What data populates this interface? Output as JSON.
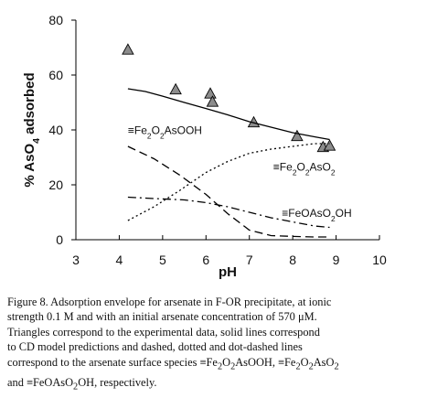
{
  "chart_data": {
    "type": "scatter",
    "xlabel": "pH",
    "ylabel_parts": {
      "pre": "% AsO",
      "sub": "4",
      "post": " adsorbed"
    },
    "xlim": [
      3,
      10
    ],
    "ylim": [
      0,
      80
    ],
    "x_ticks": [
      3,
      4,
      5,
      6,
      7,
      8,
      9,
      10
    ],
    "y_ticks": [
      0,
      20,
      40,
      60,
      80
    ],
    "grid": false,
    "series": [
      {
        "kind": "points",
        "marker": "triangle",
        "color": "#8c8c8c",
        "points": [
          [
            4.2,
            69
          ],
          [
            5.3,
            54.5
          ],
          [
            6.1,
            53
          ],
          [
            6.15,
            50
          ],
          [
            7.1,
            42.5
          ],
          [
            8.1,
            37.5
          ],
          [
            8.7,
            33.5
          ],
          [
            8.85,
            34
          ]
        ]
      },
      {
        "kind": "line",
        "style": "solid",
        "color": "#000000",
        "points": [
          [
            4.2,
            55
          ],
          [
            4.6,
            54
          ],
          [
            5.0,
            52.3
          ],
          [
            5.5,
            50
          ],
          [
            6.0,
            47.8
          ],
          [
            6.5,
            45.5
          ],
          [
            7.0,
            43
          ],
          [
            7.5,
            41
          ],
          [
            8.0,
            39
          ],
          [
            8.5,
            37.5
          ],
          [
            8.85,
            36.5
          ]
        ]
      },
      {
        "kind": "line",
        "style": "dashed",
        "color": "#000000",
        "points": [
          [
            4.2,
            34
          ],
          [
            4.8,
            29.5
          ],
          [
            5.4,
            23.5
          ],
          [
            6.0,
            16.5
          ],
          [
            6.5,
            9.5
          ],
          [
            7.0,
            3.5
          ],
          [
            7.5,
            1.5
          ],
          [
            8.0,
            1.2
          ],
          [
            8.5,
            1
          ],
          [
            8.85,
            1
          ]
        ]
      },
      {
        "kind": "line",
        "style": "dotted",
        "color": "#000000",
        "points": [
          [
            4.2,
            7
          ],
          [
            4.8,
            12
          ],
          [
            5.4,
            18
          ],
          [
            6.0,
            24.5
          ],
          [
            6.5,
            28.5
          ],
          [
            7.0,
            31.5
          ],
          [
            7.5,
            33
          ],
          [
            8.0,
            34
          ],
          [
            8.5,
            35
          ],
          [
            8.85,
            35
          ]
        ]
      },
      {
        "kind": "line",
        "style": "dashdot",
        "color": "#000000",
        "points": [
          [
            4.2,
            15.5
          ],
          [
            4.8,
            15
          ],
          [
            5.5,
            14.5
          ],
          [
            6.0,
            13.5
          ],
          [
            6.5,
            12
          ],
          [
            7.0,
            10
          ],
          [
            7.5,
            8
          ],
          [
            8.0,
            6.5
          ],
          [
            8.5,
            5
          ],
          [
            8.85,
            4.5
          ]
        ]
      }
    ],
    "annotations": [
      {
        "id": "fe2o2asooh",
        "pre": "≡Fe",
        "sub1": "2",
        "mid": "O",
        "sub2": "2",
        "post": "AsOOH",
        "x": 4.2,
        "y": 38.5
      },
      {
        "id": "fe2o2aso2",
        "pre": "≡Fe",
        "sub1": "2",
        "mid": "O",
        "sub2": "2",
        "post": "AsO",
        "sub3": "2",
        "x": 7.55,
        "y": 25.2
      },
      {
        "id": "feoaso2oh",
        "pre": "≡FeOAsO",
        "sub1": "2",
        "post": "OH",
        "x": 7.75,
        "y": 8.3
      }
    ]
  },
  "caption": {
    "line1": "Figure 8. Adsorption envelope for arsenate in F-OR precipitate, at ionic",
    "line2": "strength 0.1 M and with an initial arsenate concentration of 570 μM.",
    "line3": "Triangles correspond to the experimental data, solid lines correspond",
    "line4": "to CD model predictions and dashed, dotted and dot-dashed lines",
    "line5_pre": "correspond to the arsenate surface species ≡Fe",
    "line5_s1": "2",
    "line5_m1": "O",
    "line5_s2": "2",
    "line5_m2": "AsOOH, ≡Fe",
    "line5_s3": "2",
    "line5_m3": "O",
    "line5_s4": "2",
    "line5_m4": "AsO",
    "line5_s5": "2",
    "line6_pre": "and ≡FeOAsO",
    "line6_s1": "2",
    "line6_post": "OH, respectively."
  }
}
